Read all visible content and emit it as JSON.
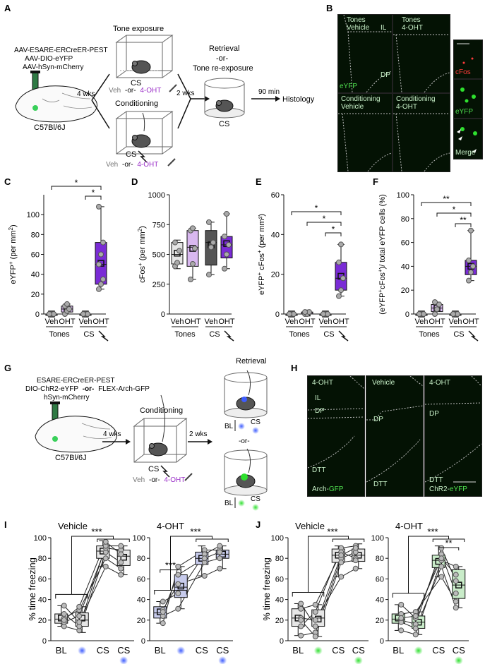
{
  "panel_letters": [
    "A",
    "B",
    "C",
    "D",
    "E",
    "F",
    "G",
    "H",
    "I",
    "J"
  ],
  "panel_a": {
    "virus_lines": [
      "AAV-ESARE-ERCreER-PEST",
      "AAV-DIO-eYFP",
      "AAV-hSyn-mCherry"
    ],
    "mouse_label": "C57Bl/6J",
    "wait1": "4 wks",
    "tone_title": "Tone exposure",
    "cond_title": "Conditioning",
    "cs": "CS",
    "veh": "Veh",
    "or": "-or-",
    "oht": "4-OHT",
    "wait2": "2 wks",
    "retrieval_lines": [
      "Retrieval",
      "-or-",
      "Tone re-exposure"
    ],
    "wait3": "90 min",
    "histology": "Histology"
  },
  "panel_b": {
    "tl_top": "Tones",
    "tl_sub": "Vehicle",
    "il": "IL",
    "dp": "DP",
    "eyfp": "eYFP",
    "tr_top": "Tones",
    "tr_sub": "4-OHT",
    "bl_top": "Conditioning",
    "bl_sub": "Vehicle",
    "br_top": "Conditioning",
    "br_sub": "4-OHT",
    "cfos": "cFos",
    "eyfp2": "eYFP",
    "merge": "Merge"
  },
  "panel_g": {
    "lines": [
      "ESARE-ERCreER-PEST",
      "DIO-ChR2-eYFP",
      "-or-",
      "FLEX-Arch-GFP",
      "hSyn-mCherry"
    ],
    "mouse_label": "C57Bl/6J",
    "wait1": "4 wks",
    "cond_title": "Conditioning",
    "cs": "CS",
    "veh": "Veh",
    "or": "-or-",
    "oht": "4-OHT",
    "wait2": "2 wks",
    "retrieval": "Retrieval",
    "bl": "BL"
  },
  "panel_h": {
    "left_top": "4-OHT",
    "il": "IL",
    "dp": "DP",
    "dtt": "DTT",
    "arch": "Arch-",
    "gfp": "GFP",
    "mid_top": "Vehicle",
    "right_top": "4-OHT",
    "chr2": "ChR2-",
    "eyfp": "eYFP"
  },
  "colors": {
    "purple": "#7a2bd6",
    "light_purple": "#d9b8f0",
    "dark_gray": "#555555",
    "light_gray": "#e6e6e6",
    "blue_light": "#c7cbec",
    "green_light": "#c9ecc9",
    "green": "#36c436",
    "blue": "#4a6ee0",
    "oht_text": "#9b30c8"
  },
  "chart_data": [
    {
      "panel": "C",
      "type": "box",
      "ylabel_pre": "eYFP",
      "ylabel_sup": "+",
      "ylabel_post": " (per mm",
      "ylabel_sup2": "2",
      "ylabel_end": ")",
      "ylim": [
        0,
        120
      ],
      "yticks": [
        0,
        20,
        40,
        60,
        80,
        100
      ],
      "categories": [
        "Veh",
        "OHT",
        "Veh",
        "OHT"
      ],
      "groups": [
        "Tones",
        "CS"
      ],
      "sig": [
        "*",
        "*"
      ],
      "boxes": [
        {
          "q1": 0,
          "median": 0,
          "q3": 0,
          "mean": 0,
          "min": 0,
          "max": 0,
          "points": [
            0,
            0,
            0,
            0
          ]
        },
        {
          "q1": 2,
          "median": 5,
          "q3": 8,
          "mean": 5,
          "min": 0,
          "max": 10,
          "points": [
            0,
            3,
            5,
            8,
            10
          ]
        },
        {
          "q1": 0,
          "median": 0,
          "q3": 0,
          "mean": 0,
          "min": 0,
          "max": 0,
          "points": [
            0,
            0,
            0,
            0
          ]
        },
        {
          "q1": 30,
          "median": 50,
          "q3": 72,
          "mean": 51,
          "min": 25,
          "max": 108,
          "points": [
            25,
            30,
            35,
            50,
            60,
            72,
            108
          ]
        }
      ]
    },
    {
      "panel": "D",
      "type": "box",
      "ylabel_pre": "cFos",
      "ylabel_sup": "+",
      "ylabel_post": " (per mm",
      "ylabel_sup2": "2",
      "ylabel_end": ")",
      "ylim": [
        0,
        1000
      ],
      "yticks": [
        0,
        250,
        500,
        750,
        1000
      ],
      "categories": [
        "Veh",
        "OHT",
        "Veh",
        "OHT"
      ],
      "groups": [
        "Tones",
        "CS"
      ],
      "boxes": [
        {
          "q1": 420,
          "median": 500,
          "q3": 600,
          "mean": 510,
          "min": 380,
          "max": 620,
          "points": [
            400,
            430,
            530,
            600
          ]
        },
        {
          "q1": 400,
          "median": 560,
          "q3": 700,
          "mean": 550,
          "min": 290,
          "max": 720,
          "points": [
            290,
            420,
            550,
            700,
            720
          ]
        },
        {
          "q1": 410,
          "median": 600,
          "q3": 700,
          "mean": 580,
          "min": 330,
          "max": 770,
          "points": [
            330,
            560,
            600,
            770
          ]
        },
        {
          "q1": 470,
          "median": 580,
          "q3": 650,
          "mean": 590,
          "min": 380,
          "max": 840,
          "points": [
            380,
            500,
            580,
            650,
            840
          ]
        }
      ]
    },
    {
      "panel": "E",
      "type": "box",
      "ylabel_pre": "eYFP",
      "ylabel_sup": "+",
      "ylabel_post": " cFos",
      "ylabel_sup2": "+",
      "ylabel_end": " (per mm²)",
      "ylim": [
        0,
        60
      ],
      "yticks": [
        0,
        20,
        40,
        60
      ],
      "categories": [
        "Veh",
        "OHT",
        "Veh",
        "OHT"
      ],
      "groups": [
        "Tones",
        "CS"
      ],
      "sig": [
        "*",
        "*",
        "*"
      ],
      "boxes": [
        {
          "q1": 0,
          "median": 0,
          "q3": 0,
          "mean": 0,
          "min": 0,
          "max": 0,
          "points": [
            0,
            0,
            0,
            0
          ]
        },
        {
          "q1": 0,
          "median": 0.5,
          "q3": 1,
          "mean": 0.5,
          "min": 0,
          "max": 1,
          "points": [
            0,
            0,
            1,
            1
          ]
        },
        {
          "q1": 0,
          "median": 0,
          "q3": 0,
          "mean": 0,
          "min": 0,
          "max": 0,
          "points": [
            0,
            0,
            0,
            0
          ]
        },
        {
          "q1": 12,
          "median": 18,
          "q3": 26,
          "mean": 19,
          "min": 9,
          "max": 35,
          "points": [
            9,
            12,
            18,
            26,
            35
          ]
        }
      ]
    },
    {
      "panel": "F",
      "type": "box",
      "ylabel_pre": "(eYFP",
      "ylabel_sup": "+",
      "ylabel_post": "cFos",
      "ylabel_sup2": "+",
      "ylabel_end": ")/ total eYFP cells (%)",
      "ylim": [
        0,
        100
      ],
      "yticks": [
        0,
        20,
        40,
        60,
        80,
        100
      ],
      "categories": [
        "Veh",
        "OHT",
        "Veh",
        "OHT"
      ],
      "groups": [
        "Tones",
        "CS"
      ],
      "sig": [
        "**",
        "*",
        "**"
      ],
      "boxes": [
        {
          "q1": 0,
          "median": 0,
          "q3": 0,
          "mean": 0,
          "min": 0,
          "max": 0,
          "points": [
            0,
            0,
            0,
            0
          ]
        },
        {
          "q1": 2,
          "median": 5,
          "q3": 8,
          "mean": 5,
          "min": 0,
          "max": 10,
          "points": [
            0,
            4,
            8,
            10
          ]
        },
        {
          "q1": 0,
          "median": 0,
          "q3": 0,
          "mean": 0,
          "min": 0,
          "max": 0,
          "points": [
            0,
            0,
            0,
            0
          ]
        },
        {
          "q1": 33,
          "median": 40,
          "q3": 45,
          "mean": 40,
          "min": 28,
          "max": 70,
          "points": [
            28,
            35,
            40,
            45,
            70
          ]
        }
      ]
    },
    {
      "panel": "I",
      "type": "box-paired",
      "ylabel": "% time freezing",
      "ylim": [
        0,
        100
      ],
      "yticks": [
        0,
        20,
        40,
        60,
        80,
        100
      ],
      "subplots": [
        {
          "title": "Vehicle",
          "categories": [
            "BL",
            "",
            "CS",
            "CS"
          ],
          "light": "blue",
          "sig": [
            "***"
          ],
          "boxes": [
            {
              "q1": 17,
              "median": 21,
              "q3": 26,
              "mean": 22,
              "min": 14,
              "max": 34
            },
            {
              "q1": 14,
              "median": 20,
              "q3": 27,
              "mean": 22,
              "min": 8,
              "max": 33
            },
            {
              "q1": 80,
              "median": 87,
              "q3": 92,
              "mean": 87,
              "min": 72,
              "max": 97
            },
            {
              "q1": 73,
              "median": 82,
              "q3": 88,
              "mean": 81,
              "min": 64,
              "max": 92
            }
          ],
          "subjects": [
            [
              14,
              10,
              86,
              76
            ],
            [
              18,
              24,
              90,
              88
            ],
            [
              22,
              30,
              80,
              70
            ],
            [
              26,
              14,
              92,
              92
            ],
            [
              34,
              18,
              72,
              64
            ],
            [
              20,
              33,
              96,
              84
            ]
          ]
        },
        {
          "title": "4-OHT",
          "categories": [
            "BL",
            "",
            "CS",
            "CS"
          ],
          "light": "blue",
          "sig": [
            "***",
            "***"
          ],
          "boxes": [
            {
              "q1": 22,
              "median": 27,
              "q3": 33,
              "mean": 28,
              "min": 17,
              "max": 38
            },
            {
              "q1": 42,
              "median": 52,
              "q3": 64,
              "mean": 53,
              "min": 31,
              "max": 72
            },
            {
              "q1": 74,
              "median": 80,
              "q3": 86,
              "mean": 80,
              "min": 63,
              "max": 92
            },
            {
              "q1": 80,
              "median": 84,
              "q3": 88,
              "mean": 84,
              "min": 70,
              "max": 92
            }
          ],
          "subjects": [
            [
              17,
              72,
              88,
              88
            ],
            [
              24,
              31,
              76,
              80
            ],
            [
              30,
              55,
              63,
              70
            ],
            [
              38,
              46,
              84,
              92
            ],
            [
              28,
              64,
              80,
              86
            ]
          ]
        }
      ]
    },
    {
      "panel": "J",
      "type": "box-paired",
      "ylabel": "% time freezing",
      "ylim": [
        0,
        100
      ],
      "yticks": [
        0,
        20,
        40,
        60,
        80,
        100
      ],
      "subplots": [
        {
          "title": "Vehicle",
          "categories": [
            "BL",
            "",
            "CS",
            "CS"
          ],
          "light": "green",
          "sig": [
            "***"
          ],
          "boxes": [
            {
              "q1": 14,
              "median": 22,
              "q3": 31,
              "mean": 22,
              "min": 5,
              "max": 36
            },
            {
              "q1": 14,
              "median": 22,
              "q3": 30,
              "mean": 21,
              "min": 4,
              "max": 35
            },
            {
              "q1": 76,
              "median": 83,
              "q3": 89,
              "mean": 83,
              "min": 62,
              "max": 92
            },
            {
              "q1": 77,
              "median": 83,
              "q3": 89,
              "mean": 83,
              "min": 70,
              "max": 94
            }
          ],
          "subjects": [
            [
              5,
              8,
              80,
              86
            ],
            [
              14,
              28,
              90,
              92
            ],
            [
              22,
              20,
              62,
              70
            ],
            [
              31,
              35,
              86,
              80
            ],
            [
              36,
              14,
              83,
              90
            ],
            [
              20,
              4,
              76,
              78
            ]
          ]
        },
        {
          "title": "4-OHT",
          "categories": [
            "BL",
            "",
            "CS",
            "CS"
          ],
          "light": "green",
          "sig": [
            "***",
            "**"
          ],
          "boxes": [
            {
              "q1": 17,
              "median": 21,
              "q3": 26,
              "mean": 22,
              "min": 10,
              "max": 35
            },
            {
              "q1": 12,
              "median": 18,
              "q3": 24,
              "mean": 18,
              "min": 6,
              "max": 28
            },
            {
              "q1": 71,
              "median": 78,
              "q3": 83,
              "mean": 77,
              "min": 62,
              "max": 92
            },
            {
              "q1": 41,
              "median": 54,
              "q3": 69,
              "mean": 54,
              "min": 32,
              "max": 72
            }
          ],
          "subjects": [
            [
              10,
              6,
              78,
              72
            ],
            [
              20,
              16,
              90,
              58
            ],
            [
              26,
              28,
              62,
              38
            ],
            [
              35,
              22,
              84,
              46
            ],
            [
              18,
              12,
              72,
              32
            ],
            [
              22,
              24,
              80,
              64
            ]
          ]
        }
      ]
    }
  ]
}
